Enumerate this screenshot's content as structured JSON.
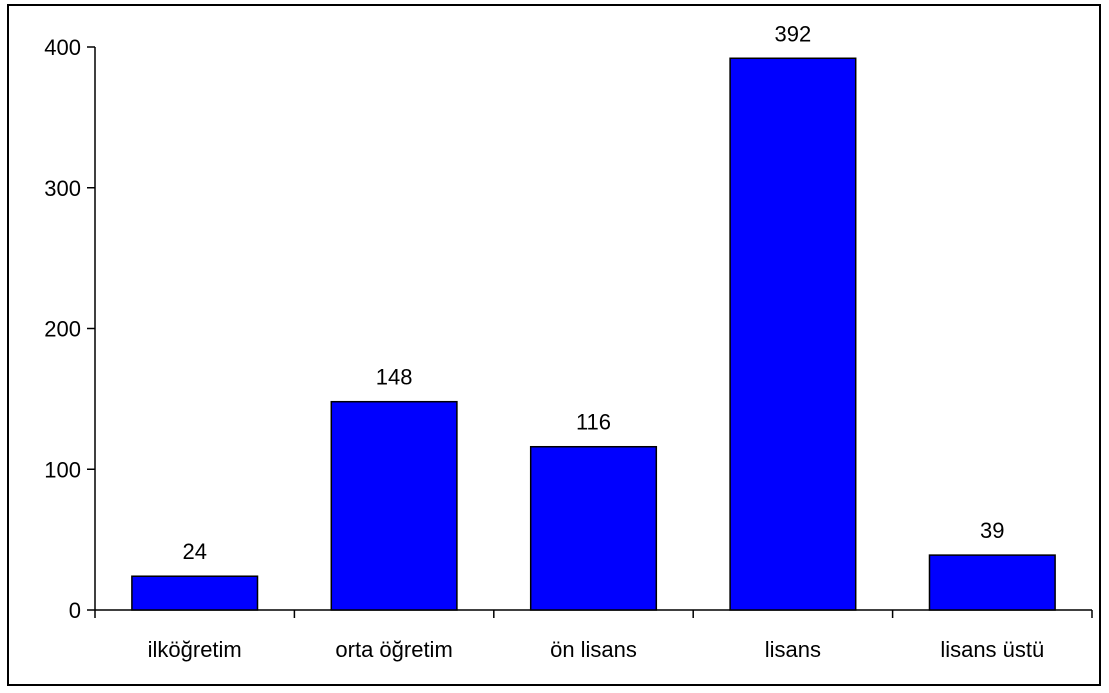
{
  "chart_data": {
    "type": "bar",
    "categories": [
      "ilköğretim",
      "orta öğretim",
      "ön lisans",
      "lisans",
      "lisans üstü"
    ],
    "values": [
      24,
      148,
      116,
      392,
      39
    ],
    "data_labels": [
      "24",
      "148",
      "116",
      "392",
      "39"
    ],
    "title": "",
    "xlabel": "",
    "ylabel": "",
    "ylim": [
      0,
      400
    ],
    "yticks": [
      0,
      100,
      200,
      300,
      400
    ],
    "ytick_labels": [
      "0",
      "100",
      "200",
      "300",
      "400"
    ],
    "grid": false,
    "legend": "none",
    "bar_color": "#0000FF",
    "bar_edge_color": "#000000"
  }
}
